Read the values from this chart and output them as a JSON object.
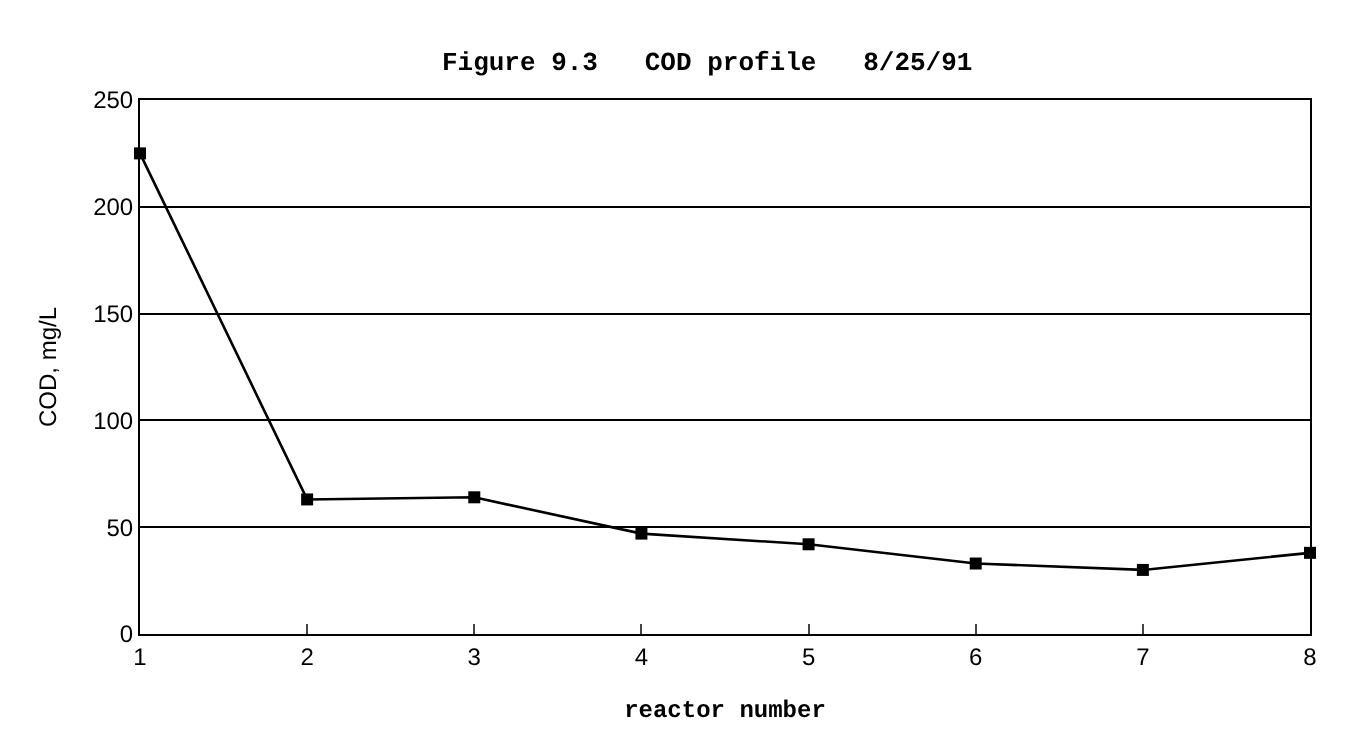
{
  "chart_data": {
    "type": "line",
    "title": "Figure 9.3   COD profile   8/25/91",
    "xlabel": "reactor number",
    "ylabel": "COD, mg/L",
    "x": [
      1,
      2,
      3,
      4,
      5,
      6,
      7,
      8
    ],
    "series": [
      {
        "color": "#000000",
        "values": [
          225,
          63,
          64,
          47,
          42,
          33,
          30,
          38
        ]
      }
    ],
    "xlim": [
      1,
      8
    ],
    "xticks": [
      1,
      2,
      3,
      4,
      5,
      6,
      7,
      8
    ],
    "ylim": [
      0,
      250
    ],
    "yticks": [
      0,
      50,
      100,
      150,
      200,
      250
    ],
    "grid": "y",
    "marker": "square",
    "line_style": "solid"
  }
}
